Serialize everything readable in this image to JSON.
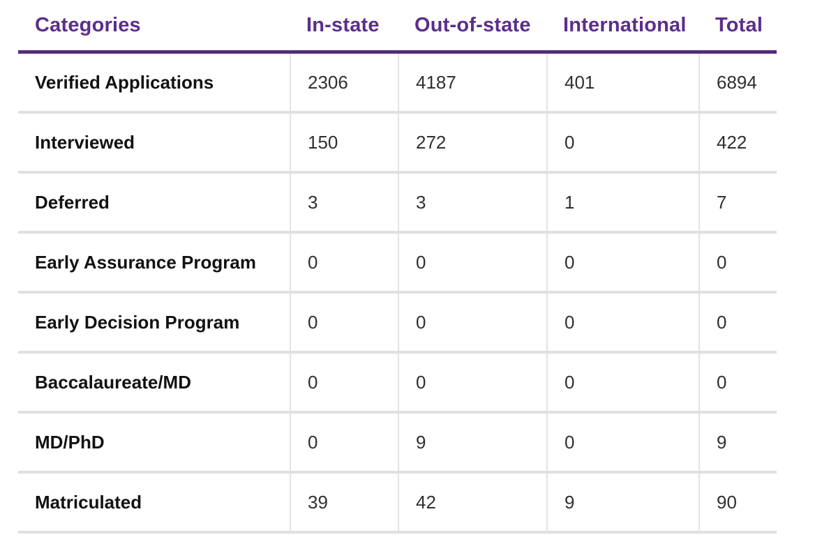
{
  "colors": {
    "accent_purple_text": "#5c2d8c",
    "accent_purple_rule": "#522c7d",
    "separator_gray": "#e0e0e2"
  },
  "table": {
    "columns": [
      "Categories",
      "In-state",
      "Out-of-state",
      "International",
      "Total"
    ],
    "rows": [
      {
        "label": "Verified Applications",
        "values": [
          "2306",
          "4187",
          "401",
          "6894"
        ]
      },
      {
        "label": "Interviewed",
        "values": [
          "150",
          "272",
          "0",
          "422"
        ]
      },
      {
        "label": "Deferred",
        "values": [
          "3",
          "3",
          "1",
          "7"
        ]
      },
      {
        "label": "Early Assurance Program",
        "values": [
          "0",
          "0",
          "0",
          "0"
        ]
      },
      {
        "label": "Early Decision Program",
        "values": [
          "0",
          "0",
          "0",
          "0"
        ]
      },
      {
        "label": "Baccalaureate/MD",
        "values": [
          "0",
          "0",
          "0",
          "0"
        ]
      },
      {
        "label": "MD/PhD",
        "values": [
          "0",
          "9",
          "0",
          "9"
        ]
      },
      {
        "label": "Matriculated",
        "values": [
          "39",
          "42",
          "9",
          "90"
        ]
      }
    ]
  }
}
